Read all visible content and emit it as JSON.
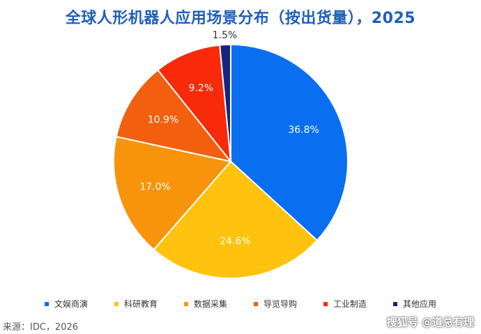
{
  "chart_data": {
    "type": "pie",
    "title": "全球人形机器人应用场景分布（按出货量），2025",
    "categories": [
      "文娱商演",
      "科研教育",
      "数据采集",
      "导览导购",
      "工业制造",
      "其他应用"
    ],
    "values": [
      36.8,
      24.6,
      17.0,
      10.9,
      9.2,
      1.5
    ],
    "labels": [
      "36.8%",
      "24.6%",
      "17.0%",
      "10.9%",
      "9.2%",
      "1.5%"
    ],
    "colors": [
      "#0a6ef0",
      "#ffc20e",
      "#f7940c",
      "#f25f0f",
      "#f82a0a",
      "#16237e"
    ],
    "legend_position": "bottom"
  },
  "source": "来源：IDC，2026",
  "watermark": "搜狐号 @道总有理"
}
